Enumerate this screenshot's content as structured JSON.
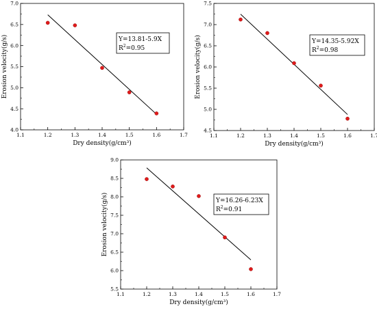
{
  "chart_data": [
    {
      "type": "scatter",
      "title": "",
      "xlabel": "Dry density(g/cm³)",
      "ylabel": "Erosion velocity(g/s)",
      "xlim": [
        1.1,
        1.7
      ],
      "ylim": [
        4.0,
        7.0
      ],
      "xticks": [
        "1.1",
        "1.2",
        "1.3",
        "1.4",
        "1.5",
        "1.6",
        "1.7"
      ],
      "yticks": [
        "4.0",
        "4.5",
        "5.0",
        "5.5",
        "6.0",
        "6.5",
        "7.0"
      ],
      "grid": false,
      "marker_color": "#e01b1b",
      "line_color": "#000000",
      "points": {
        "x": [
          1.2,
          1.3,
          1.4,
          1.5,
          1.6
        ],
        "y": [
          6.54,
          6.48,
          5.47,
          4.89,
          4.39
        ]
      },
      "fit": {
        "intercept": 13.81,
        "slope": -5.9,
        "x_range": [
          1.2,
          1.6
        ]
      },
      "annotation": {
        "equation": "Y=13.81-5.9X",
        "r2_prefix": "R",
        "r2_sup": "2",
        "r2_value": "=0.95"
      }
    },
    {
      "type": "scatter",
      "title": "",
      "xlabel": "Dry density(g/cm³)",
      "ylabel": "Erosion velocity(g/s)",
      "xlim": [
        1.1,
        1.7
      ],
      "ylim": [
        4.5,
        7.5
      ],
      "xticks": [
        "1.1",
        "1.2",
        "1.3",
        "1.4",
        "1.5",
        "1.6",
        "1.7"
      ],
      "yticks": [
        "4.5",
        "5.0",
        "5.5",
        "6.0",
        "6.5",
        "7.0",
        "7.5"
      ],
      "grid": false,
      "marker_color": "#e01b1b",
      "line_color": "#000000",
      "points": {
        "x": [
          1.2,
          1.3,
          1.4,
          1.5,
          1.6
        ],
        "y": [
          7.12,
          6.8,
          6.09,
          5.56,
          4.78
        ]
      },
      "fit": {
        "intercept": 14.35,
        "slope": -5.92,
        "x_range": [
          1.2,
          1.6
        ]
      },
      "annotation": {
        "equation": "Y=14.35-5.92X",
        "r2_prefix": "R",
        "r2_sup": "2",
        "r2_value": "=0.98"
      }
    },
    {
      "type": "scatter",
      "title": "",
      "xlabel": "Dry density(g/cm³)",
      "ylabel": "Erosion velocity(g/s)",
      "xlim": [
        1.1,
        1.7
      ],
      "ylim": [
        5.5,
        9.0
      ],
      "xticks": [
        "1.1",
        "1.2",
        "1.3",
        "1.4",
        "1.5",
        "1.6",
        "1.7"
      ],
      "yticks": [
        "5.5",
        "6.0",
        "6.5",
        "7.0",
        "7.5",
        "8.0",
        "8.5",
        "9.0"
      ],
      "grid": false,
      "marker_color": "#e01b1b",
      "line_color": "#000000",
      "points": {
        "x": [
          1.2,
          1.3,
          1.4,
          1.5,
          1.6
        ],
        "y": [
          8.48,
          8.28,
          8.02,
          6.9,
          6.04
        ]
      },
      "fit": {
        "intercept": 16.26,
        "slope": -6.23,
        "x_range": [
          1.2,
          1.6
        ]
      },
      "annotation": {
        "equation": "Y=16.26-6.23X",
        "r2_prefix": "R",
        "r2_sup": "2",
        "r2_value": "=0.91"
      }
    }
  ]
}
